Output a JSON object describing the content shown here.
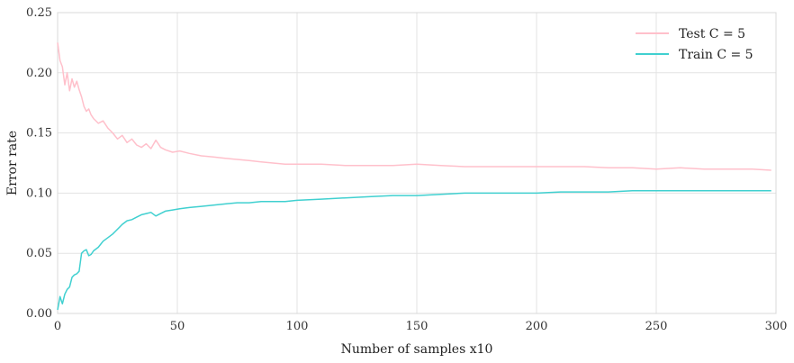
{
  "chart_data": {
    "type": "line",
    "title": "",
    "xlabel": "Number of samples x10",
    "ylabel": "Error rate",
    "xlim": [
      0,
      300
    ],
    "ylim": [
      0.0,
      0.25
    ],
    "xticks": [
      0,
      50,
      100,
      150,
      200,
      250,
      300
    ],
    "xtick_labels": [
      "0",
      "50",
      "100",
      "150",
      "200",
      "250",
      "300"
    ],
    "yticks": [
      0.0,
      0.05,
      0.1,
      0.15,
      0.2,
      0.25
    ],
    "ytick_labels": [
      "0.00",
      "0.05",
      "0.10",
      "0.15",
      "0.20",
      "0.25"
    ],
    "grid": true,
    "legend": {
      "position": "top-right"
    },
    "series": [
      {
        "name": "Test C = 5",
        "color": "#ffc0cb",
        "points": [
          [
            0,
            0.225
          ],
          [
            1,
            0.21
          ],
          [
            2,
            0.205
          ],
          [
            3,
            0.19
          ],
          [
            4,
            0.2
          ],
          [
            5,
            0.185
          ],
          [
            6,
            0.195
          ],
          [
            7,
            0.188
          ],
          [
            8,
            0.193
          ],
          [
            9,
            0.186
          ],
          [
            10,
            0.18
          ],
          [
            11,
            0.172
          ],
          [
            12,
            0.168
          ],
          [
            13,
            0.17
          ],
          [
            14,
            0.165
          ],
          [
            15,
            0.162
          ],
          [
            17,
            0.158
          ],
          [
            19,
            0.16
          ],
          [
            21,
            0.154
          ],
          [
            23,
            0.15
          ],
          [
            25,
            0.145
          ],
          [
            27,
            0.148
          ],
          [
            29,
            0.142
          ],
          [
            31,
            0.145
          ],
          [
            33,
            0.14
          ],
          [
            35,
            0.138
          ],
          [
            37,
            0.141
          ],
          [
            39,
            0.137
          ],
          [
            41,
            0.144
          ],
          [
            43,
            0.138
          ],
          [
            45,
            0.136
          ],
          [
            48,
            0.134
          ],
          [
            51,
            0.135
          ],
          [
            55,
            0.133
          ],
          [
            60,
            0.131
          ],
          [
            65,
            0.13
          ],
          [
            70,
            0.129
          ],
          [
            75,
            0.128
          ],
          [
            80,
            0.127
          ],
          [
            85,
            0.126
          ],
          [
            90,
            0.125
          ],
          [
            95,
            0.124
          ],
          [
            100,
            0.124
          ],
          [
            110,
            0.124
          ],
          [
            120,
            0.123
          ],
          [
            130,
            0.123
          ],
          [
            140,
            0.123
          ],
          [
            150,
            0.124
          ],
          [
            160,
            0.123
          ],
          [
            170,
            0.122
          ],
          [
            180,
            0.122
          ],
          [
            190,
            0.122
          ],
          [
            200,
            0.122
          ],
          [
            210,
            0.122
          ],
          [
            220,
            0.122
          ],
          [
            230,
            0.121
          ],
          [
            240,
            0.121
          ],
          [
            250,
            0.12
          ],
          [
            260,
            0.121
          ],
          [
            270,
            0.12
          ],
          [
            280,
            0.12
          ],
          [
            290,
            0.12
          ],
          [
            298,
            0.119
          ]
        ]
      },
      {
        "name": "Train C = 5",
        "color": "#40d0d0",
        "points": [
          [
            0,
            0.003
          ],
          [
            1,
            0.014
          ],
          [
            2,
            0.008
          ],
          [
            3,
            0.016
          ],
          [
            4,
            0.02
          ],
          [
            5,
            0.022
          ],
          [
            6,
            0.03
          ],
          [
            7,
            0.032
          ],
          [
            8,
            0.033
          ],
          [
            9,
            0.035
          ],
          [
            10,
            0.05
          ],
          [
            11,
            0.052
          ],
          [
            12,
            0.053
          ],
          [
            13,
            0.048
          ],
          [
            14,
            0.049
          ],
          [
            15,
            0.052
          ],
          [
            17,
            0.055
          ],
          [
            19,
            0.06
          ],
          [
            21,
            0.063
          ],
          [
            23,
            0.066
          ],
          [
            25,
            0.07
          ],
          [
            27,
            0.074
          ],
          [
            29,
            0.077
          ],
          [
            31,
            0.078
          ],
          [
            33,
            0.08
          ],
          [
            35,
            0.082
          ],
          [
            37,
            0.083
          ],
          [
            39,
            0.084
          ],
          [
            41,
            0.081
          ],
          [
            43,
            0.083
          ],
          [
            45,
            0.085
          ],
          [
            48,
            0.086
          ],
          [
            51,
            0.087
          ],
          [
            55,
            0.088
          ],
          [
            60,
            0.089
          ],
          [
            65,
            0.09
          ],
          [
            70,
            0.091
          ],
          [
            75,
            0.092
          ],
          [
            80,
            0.092
          ],
          [
            85,
            0.093
          ],
          [
            90,
            0.093
          ],
          [
            95,
            0.093
          ],
          [
            100,
            0.094
          ],
          [
            110,
            0.095
          ],
          [
            120,
            0.096
          ],
          [
            130,
            0.097
          ],
          [
            140,
            0.098
          ],
          [
            150,
            0.098
          ],
          [
            160,
            0.099
          ],
          [
            170,
            0.1
          ],
          [
            180,
            0.1
          ],
          [
            190,
            0.1
          ],
          [
            200,
            0.1
          ],
          [
            210,
            0.101
          ],
          [
            220,
            0.101
          ],
          [
            230,
            0.101
          ],
          [
            240,
            0.102
          ],
          [
            250,
            0.102
          ],
          [
            260,
            0.102
          ],
          [
            270,
            0.102
          ],
          [
            280,
            0.102
          ],
          [
            290,
            0.102
          ],
          [
            298,
            0.102
          ]
        ]
      }
    ]
  }
}
